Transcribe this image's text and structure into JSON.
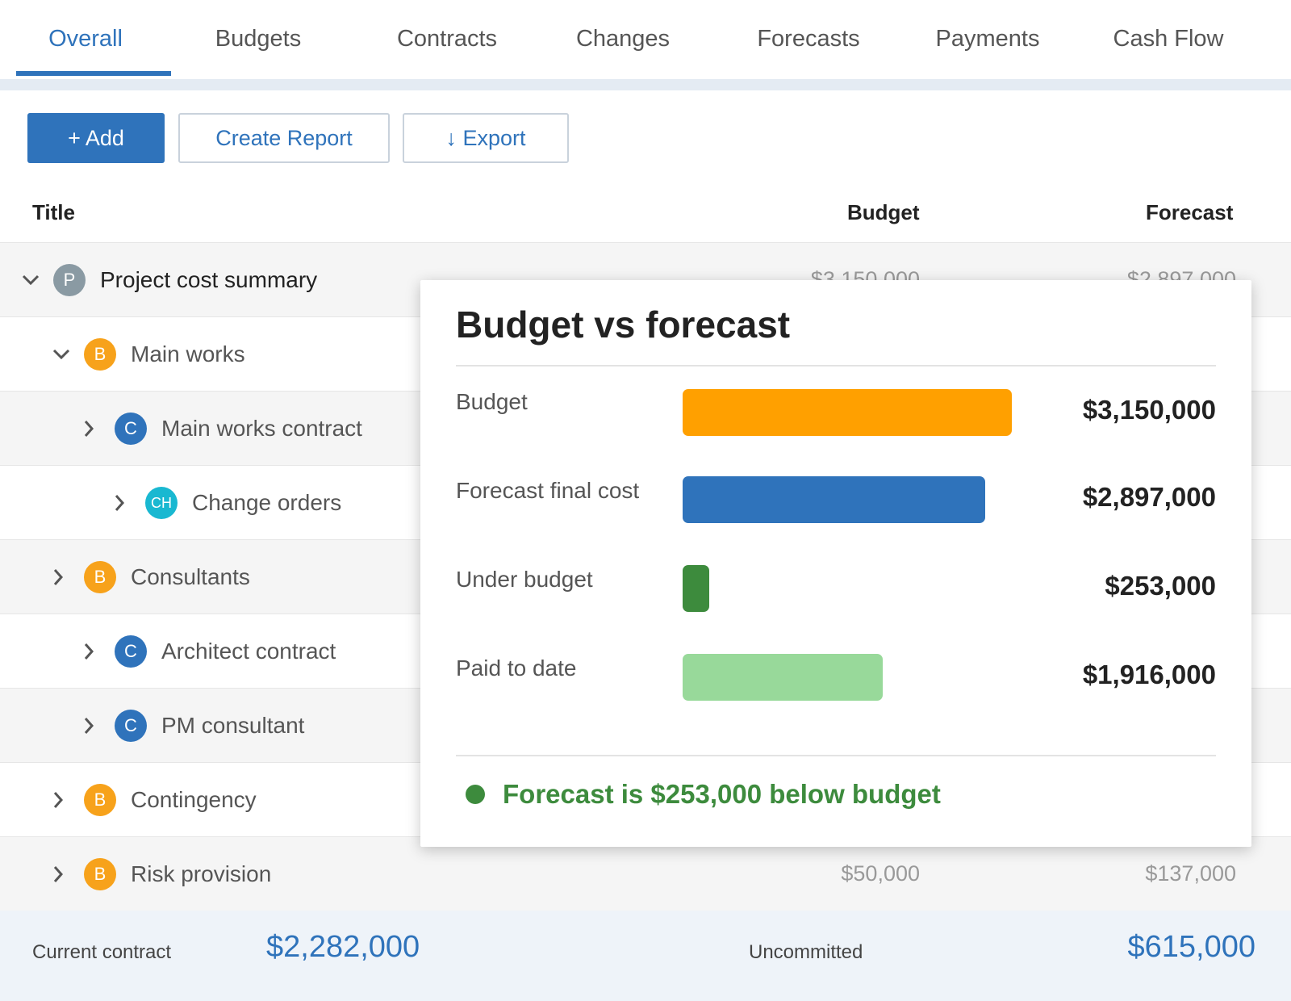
{
  "tabs": [
    {
      "label": "Overall",
      "active": true
    },
    {
      "label": "Budgets"
    },
    {
      "label": "Contracts"
    },
    {
      "label": "Changes"
    },
    {
      "label": "Forecasts"
    },
    {
      "label": "Payments"
    },
    {
      "label": "Cash Flow"
    }
  ],
  "toolbar": {
    "add_label": "+ Add",
    "report_label": "Create Report",
    "export_label": "↓ Export"
  },
  "table": {
    "headers": {
      "title": "Title",
      "budget": "Budget",
      "forecast": "Forecast"
    },
    "rows": [
      {
        "title": "Project cost summary",
        "badge": "P",
        "badge_color": "#8a9aa3",
        "expanded": true,
        "budget": "$3,150,000",
        "forecast": "$2,897,000"
      },
      {
        "title": "Main works",
        "badge": "B",
        "badge_color": "#f7a21b",
        "expanded": true
      },
      {
        "title": "Main works contract",
        "badge": "C",
        "badge_color": "#2f73bb"
      },
      {
        "title": "Change orders",
        "badge": "CH",
        "badge_color": "#19b8d1"
      },
      {
        "title": "Consultants",
        "badge": "B",
        "badge_color": "#f7a21b"
      },
      {
        "title": "Architect contract",
        "badge": "C",
        "badge_color": "#2f73bb"
      },
      {
        "title": "PM consultant",
        "badge": "C",
        "badge_color": "#2f73bb"
      },
      {
        "title": "Contingency",
        "badge": "B",
        "badge_color": "#f7a21b"
      },
      {
        "title": "Risk provision",
        "badge": "B",
        "badge_color": "#f7a21b",
        "budget": "$50,000",
        "forecast": "$137,000"
      }
    ]
  },
  "footer": {
    "current_contract_label": "Current contract",
    "current_contract_value": "$2,282,000",
    "uncommitted_label": "Uncommitted",
    "uncommitted_value": "$615,000"
  },
  "popover": {
    "title": "Budget vs forecast",
    "items": [
      {
        "label": "Budget",
        "value": "$3,150,000",
        "amount": 3150000,
        "color": "#ffa000"
      },
      {
        "label": "Forecast final cost",
        "value": "$2,897,000",
        "amount": 2897000,
        "color": "#2f73bb"
      },
      {
        "label": "Under budget",
        "value": "$253,000",
        "amount": 253000,
        "color": "#3d8b3d"
      },
      {
        "label": "Paid to date",
        "value": "$1,916,000",
        "amount": 1916000,
        "color": "#98d99a"
      }
    ],
    "status_text": "Forecast is $253,000 below budget",
    "status_color": "#3d8b3d"
  },
  "colors": {
    "accent": "#2f73bb"
  }
}
